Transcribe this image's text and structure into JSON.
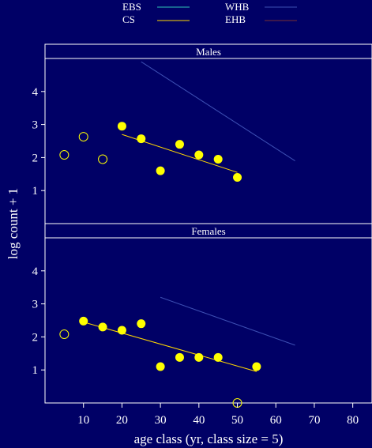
{
  "chart_data": {
    "type": "scatter",
    "title": "",
    "xlabel": "age class (yr, class size = 5)",
    "ylabel": "log count + 1",
    "xlim": [
      0,
      85
    ],
    "ylim": [
      0,
      5
    ],
    "x_ticks": [
      10,
      20,
      30,
      40,
      50,
      60,
      70,
      80
    ],
    "y_ticks": [
      1,
      2,
      3,
      4
    ],
    "grid": false,
    "legend": {
      "placement": "top",
      "entries": [
        {
          "name": "EBS",
          "color": "#2ec4b6"
        },
        {
          "name": "WHB",
          "color": "#3d4fb3"
        },
        {
          "name": "CS",
          "color": "#ffd700"
        },
        {
          "name": "EHB",
          "color": "#7a3030"
        }
      ]
    },
    "panels": [
      {
        "name": "Males",
        "points_filled": [
          [
            20,
            2.95
          ],
          [
            25,
            2.57
          ],
          [
            30,
            1.6
          ],
          [
            35,
            2.4
          ],
          [
            40,
            2.08
          ],
          [
            45,
            1.95
          ],
          [
            50,
            1.4
          ]
        ],
        "points_open": [
          [
            5,
            2.08
          ],
          [
            10,
            2.63
          ],
          [
            15,
            1.95
          ]
        ],
        "fit_line": {
          "series": "CS",
          "x": [
            20,
            50
          ],
          "y": [
            2.7,
            1.55
          ]
        },
        "ref_line": {
          "series": "WHB",
          "x": [
            25,
            65
          ],
          "y": [
            4.9,
            1.9
          ]
        }
      },
      {
        "name": "Females",
        "points_filled": [
          [
            10,
            2.48
          ],
          [
            15,
            2.3
          ],
          [
            20,
            2.2
          ],
          [
            25,
            2.4
          ],
          [
            30,
            1.1
          ],
          [
            35,
            1.38
          ],
          [
            40,
            1.38
          ],
          [
            45,
            1.38
          ],
          [
            55,
            1.1
          ]
        ],
        "points_open": [
          [
            5,
            2.08
          ],
          [
            50,
            0.0
          ]
        ],
        "fit_line": {
          "series": "CS",
          "x": [
            10,
            55
          ],
          "y": [
            2.45,
            0.95
          ]
        },
        "ref_line": {
          "series": "WHB",
          "x": [
            30,
            65
          ],
          "y": [
            3.2,
            1.75
          ]
        }
      }
    ]
  }
}
